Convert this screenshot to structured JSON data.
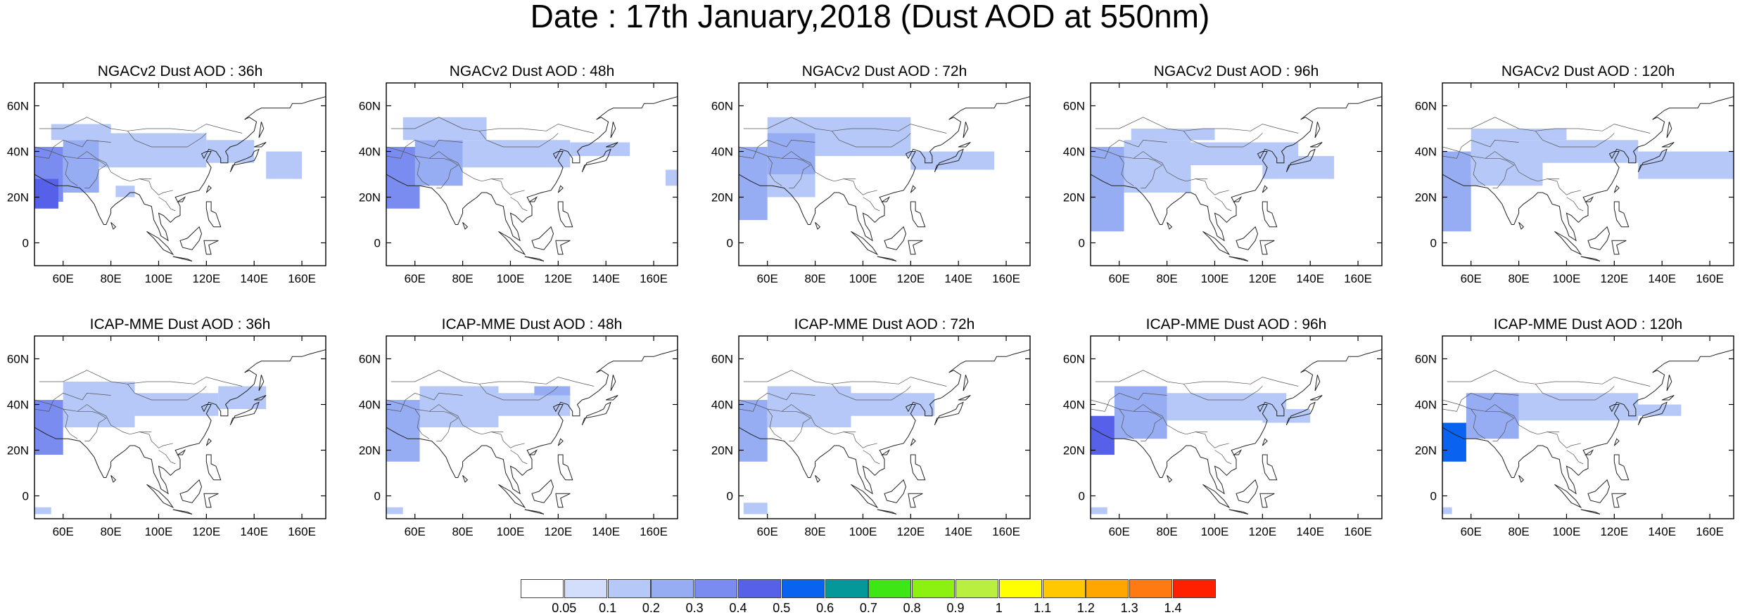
{
  "title": "Date : 17th January,2018 (Dust AOD at 550nm)",
  "axes": {
    "lon_ticks": [
      "60E",
      "80E",
      "100E",
      "120E",
      "140E",
      "160E"
    ],
    "lat_ticks": [
      "60N",
      "40N",
      "20N",
      "0"
    ],
    "lon_values": [
      60,
      80,
      100,
      120,
      140,
      160
    ],
    "lat_values": [
      60,
      40,
      20,
      0
    ],
    "lon_range": [
      48,
      170
    ],
    "lat_range": [
      -10,
      70
    ]
  },
  "panels": [
    {
      "title": "NGACv2 Dust AOD : 36h",
      "model": "NGACv2",
      "lead": "36h"
    },
    {
      "title": "NGACv2 Dust AOD : 48h",
      "model": "NGACv2",
      "lead": "48h"
    },
    {
      "title": "NGACv2 Dust AOD : 72h",
      "model": "NGACv2",
      "lead": "72h"
    },
    {
      "title": "NGACv2 Dust AOD : 96h",
      "model": "NGACv2",
      "lead": "96h"
    },
    {
      "title": "NGACv2 Dust AOD : 120h",
      "model": "NGACv2",
      "lead": "120h"
    },
    {
      "title": "ICAP-MME Dust AOD : 36h",
      "model": "ICAP-MME",
      "lead": "36h"
    },
    {
      "title": "ICAP-MME Dust AOD : 48h",
      "model": "ICAP-MME",
      "lead": "48h"
    },
    {
      "title": "ICAP-MME Dust AOD : 72h",
      "model": "ICAP-MME",
      "lead": "72h"
    },
    {
      "title": "ICAP-MME Dust AOD : 96h",
      "model": "ICAP-MME",
      "lead": "96h"
    },
    {
      "title": "ICAP-MME Dust AOD : 120h",
      "model": "ICAP-MME",
      "lead": "120h"
    }
  ],
  "colorbar": {
    "labels": [
      "0.05",
      "0.1",
      "0.2",
      "0.3",
      "0.4",
      "0.5",
      "0.6",
      "0.7",
      "0.8",
      "0.9",
      "1",
      "1.1",
      "1.2",
      "1.3",
      "1.4"
    ],
    "colors": [
      "#ffffff",
      "#d3defc",
      "#b5c8f7",
      "#96acf3",
      "#7b8cf0",
      "#5660e8",
      "#0a62f0",
      "#05989a",
      "#3fe616",
      "#8cf010",
      "#b9f040",
      "#ffff00",
      "#ffc800",
      "#ffa600",
      "#ff7a10",
      "#ff2000"
    ]
  },
  "dust_fields": {
    "NGACv2 Dust AOD : 36h": [
      [
        48,
        60,
        18,
        42,
        0.35
      ],
      [
        60,
        75,
        22,
        45,
        0.2
      ],
      [
        75,
        120,
        33,
        48,
        0.15
      ],
      [
        55,
        80,
        45,
        52,
        0.15
      ],
      [
        120,
        140,
        35,
        45,
        0.12
      ],
      [
        145,
        160,
        28,
        40,
        0.12
      ],
      [
        82,
        90,
        20,
        25,
        0.12
      ],
      [
        48,
        58,
        15,
        28,
        0.45
      ]
    ],
    "NGACv2 Dust AOD : 48h": [
      [
        48,
        62,
        15,
        42,
        0.3
      ],
      [
        60,
        80,
        25,
        45,
        0.2
      ],
      [
        80,
        125,
        33,
        45,
        0.13
      ],
      [
        55,
        90,
        45,
        55,
        0.12
      ],
      [
        125,
        150,
        38,
        44,
        0.1
      ],
      [
        165,
        170,
        25,
        32,
        0.1
      ]
    ],
    "NGACv2 Dust AOD : 72h": [
      [
        48,
        60,
        10,
        42,
        0.25
      ],
      [
        60,
        80,
        30,
        48,
        0.2
      ],
      [
        80,
        120,
        38,
        48,
        0.15
      ],
      [
        60,
        120,
        48,
        55,
        0.12
      ],
      [
        120,
        155,
        32,
        40,
        0.12
      ],
      [
        60,
        80,
        20,
        30,
        0.12
      ]
    ],
    "NGACv2 Dust AOD : 96h": [
      [
        48,
        62,
        5,
        42,
        0.2
      ],
      [
        62,
        90,
        22,
        45,
        0.15
      ],
      [
        90,
        135,
        34,
        44,
        0.12
      ],
      [
        65,
        100,
        45,
        50,
        0.12
      ],
      [
        120,
        150,
        28,
        38,
        0.12
      ]
    ],
    "NGACv2 Dust AOD : 120h": [
      [
        48,
        60,
        5,
        40,
        0.2
      ],
      [
        60,
        90,
        25,
        45,
        0.15
      ],
      [
        90,
        130,
        35,
        45,
        0.12
      ],
      [
        130,
        170,
        28,
        40,
        0.12
      ],
      [
        60,
        100,
        45,
        50,
        0.12
      ]
    ],
    "ICAP-MME Dust AOD : 36h": [
      [
        48,
        60,
        18,
        42,
        0.3
      ],
      [
        60,
        90,
        30,
        50,
        0.15
      ],
      [
        90,
        125,
        35,
        45,
        0.15
      ],
      [
        125,
        145,
        38,
        48,
        0.12
      ],
      [
        48,
        55,
        -8,
        -5,
        0.1
      ]
    ],
    "ICAP-MME Dust AOD : 48h": [
      [
        48,
        62,
        15,
        42,
        0.25
      ],
      [
        62,
        95,
        30,
        48,
        0.15
      ],
      [
        95,
        125,
        35,
        45,
        0.13
      ],
      [
        110,
        125,
        44,
        48,
        0.2
      ],
      [
        48,
        55,
        -8,
        -5,
        0.1
      ]
    ],
    "ICAP-MME Dust AOD : 72h": [
      [
        48,
        60,
        15,
        42,
        0.25
      ],
      [
        60,
        95,
        30,
        48,
        0.15
      ],
      [
        95,
        130,
        35,
        45,
        0.12
      ],
      [
        50,
        60,
        -8,
        -3,
        0.1
      ]
    ],
    "ICAP-MME Dust AOD : 96h": [
      [
        48,
        58,
        18,
        35,
        0.45
      ],
      [
        58,
        80,
        25,
        48,
        0.2
      ],
      [
        80,
        130,
        33,
        45,
        0.13
      ],
      [
        120,
        140,
        32,
        38,
        0.15
      ],
      [
        48,
        55,
        -8,
        -5,
        0.1
      ]
    ],
    "ICAP-MME Dust AOD : 120h": [
      [
        48,
        58,
        15,
        32,
        0.5
      ],
      [
        58,
        80,
        25,
        45,
        0.2
      ],
      [
        80,
        130,
        33,
        45,
        0.13
      ],
      [
        120,
        148,
        35,
        40,
        0.15
      ],
      [
        48,
        52,
        -8,
        -5,
        0.1
      ]
    ]
  },
  "coastline": [
    [
      [
        48,
        30
      ],
      [
        53,
        27
      ],
      [
        57,
        25
      ],
      [
        62,
        25
      ],
      [
        67,
        24
      ],
      [
        70,
        21
      ],
      [
        73,
        17
      ],
      [
        75,
        12
      ],
      [
        77,
        8
      ],
      [
        78,
        8
      ],
      [
        80,
        13
      ],
      [
        80,
        15
      ],
      [
        82,
        17
      ],
      [
        86,
        20
      ],
      [
        88,
        22
      ],
      [
        90,
        22
      ],
      [
        92,
        21
      ],
      [
        94,
        17
      ],
      [
        97,
        16
      ],
      [
        98,
        10
      ],
      [
        100,
        6
      ],
      [
        101,
        3
      ],
      [
        104,
        1
      ],
      [
        103,
        5
      ],
      [
        101,
        8
      ],
      [
        100,
        13
      ],
      [
        102,
        12
      ],
      [
        105,
        9
      ],
      [
        107,
        11
      ],
      [
        109,
        12
      ],
      [
        109,
        16
      ],
      [
        107,
        20
      ],
      [
        110,
        21
      ],
      [
        113,
        22
      ],
      [
        117,
        23
      ],
      [
        119,
        26
      ],
      [
        121,
        30
      ],
      [
        122,
        33
      ],
      [
        120,
        36
      ],
      [
        121,
        38
      ],
      [
        122,
        40
      ],
      [
        120,
        40
      ],
      [
        118,
        39
      ],
      [
        119,
        37
      ],
      [
        121,
        41
      ],
      [
        124,
        40
      ],
      [
        126,
        37
      ],
      [
        126,
        35
      ],
      [
        129,
        35
      ],
      [
        129,
        38
      ],
      [
        128,
        40
      ],
      [
        130,
        42
      ],
      [
        133,
        43
      ],
      [
        137,
        46
      ],
      [
        140,
        49
      ],
      [
        141,
        53
      ],
      [
        138,
        55
      ],
      [
        136,
        54
      ],
      [
        141,
        58
      ],
      [
        143,
        59
      ],
      [
        150,
        59
      ],
      [
        155,
        59
      ],
      [
        156,
        61
      ],
      [
        160,
        61
      ],
      [
        163,
        62
      ],
      [
        170,
        64
      ]
    ]
  ],
  "islands": [
    [
      [
        80,
        9
      ],
      [
        82,
        7
      ],
      [
        81,
        6
      ],
      [
        80,
        9
      ]
    ],
    [
      [
        95,
        5
      ],
      [
        100,
        2
      ],
      [
        104,
        -2
      ],
      [
        106,
        -5
      ],
      [
        102,
        -3
      ],
      [
        98,
        2
      ],
      [
        95,
        5
      ]
    ],
    [
      [
        106,
        -6
      ],
      [
        114,
        -8
      ],
      [
        112,
        -7
      ],
      [
        106,
        -6
      ]
    ],
    [
      [
        109,
        1
      ],
      [
        112,
        2
      ],
      [
        117,
        7
      ],
      [
        118,
        4
      ],
      [
        117,
        1
      ],
      [
        114,
        -3
      ],
      [
        110,
        -2
      ],
      [
        109,
        1
      ]
    ],
    [
      [
        119,
        1
      ],
      [
        125,
        1
      ],
      [
        121,
        -1
      ],
      [
        122,
        -5
      ],
      [
        120,
        -5
      ],
      [
        119,
        1
      ]
    ],
    [
      [
        120,
        18
      ],
      [
        122,
        18
      ],
      [
        122,
        14
      ],
      [
        124,
        13
      ],
      [
        125,
        10
      ],
      [
        126,
        7
      ],
      [
        123,
        7
      ],
      [
        121,
        10
      ],
      [
        120,
        15
      ],
      [
        120,
        18
      ]
    ],
    [
      [
        130,
        31
      ],
      [
        131,
        34
      ],
      [
        136,
        35
      ],
      [
        140,
        36
      ],
      [
        141,
        38
      ],
      [
        142,
        41
      ],
      [
        140,
        40
      ],
      [
        139,
        38
      ],
      [
        137,
        37
      ],
      [
        132,
        35
      ],
      [
        130,
        31
      ]
    ],
    [
      [
        140,
        42
      ],
      [
        145,
        44
      ],
      [
        143,
        42
      ],
      [
        140,
        42
      ]
    ],
    [
      [
        120,
        22
      ],
      [
        121,
        25
      ],
      [
        122,
        24
      ],
      [
        120,
        22
      ]
    ],
    [
      [
        108,
        18
      ],
      [
        111,
        20
      ],
      [
        110,
        18
      ],
      [
        108,
        18
      ]
    ],
    [
      [
        142,
        46
      ],
      [
        143,
        53
      ],
      [
        144,
        50
      ],
      [
        142,
        46
      ]
    ]
  ],
  "borders": [
    [
      [
        48,
        42
      ],
      [
        55,
        40
      ],
      [
        60,
        38
      ],
      [
        66,
        37
      ],
      [
        70,
        40
      ],
      [
        74,
        37
      ],
      [
        78,
        35
      ],
      [
        80,
        31
      ],
      [
        85,
        28
      ],
      [
        88,
        27
      ],
      [
        92,
        28
      ],
      [
        97,
        28
      ]
    ],
    [
      [
        50,
        50
      ],
      [
        60,
        50
      ],
      [
        70,
        55
      ],
      [
        80,
        50
      ],
      [
        87,
        49
      ],
      [
        95,
        50
      ],
      [
        105,
        50
      ],
      [
        115,
        49
      ],
      [
        120,
        52
      ],
      [
        127,
        50
      ],
      [
        135,
        48
      ]
    ],
    [
      [
        87,
        49
      ],
      [
        90,
        45
      ],
      [
        97,
        42
      ],
      [
        105,
        42
      ],
      [
        112,
        42
      ],
      [
        118,
        46
      ],
      [
        120,
        48
      ]
    ],
    [
      [
        60,
        38
      ],
      [
        62,
        35
      ],
      [
        61,
        30
      ],
      [
        63,
        27
      ],
      [
        66,
        25
      ]
    ],
    [
      [
        66,
        37
      ],
      [
        72,
        37
      ],
      [
        75,
        36
      ],
      [
        78,
        34
      ],
      [
        75,
        32
      ],
      [
        74,
        28
      ],
      [
        71,
        24
      ],
      [
        69,
        24
      ]
    ],
    [
      [
        92,
        28
      ],
      [
        96,
        27
      ],
      [
        97,
        24
      ],
      [
        100,
        21
      ],
      [
        102,
        22
      ],
      [
        106,
        23
      ]
    ],
    [
      [
        100,
        20
      ],
      [
        103,
        18
      ],
      [
        105,
        15
      ],
      [
        107,
        14
      ]
    ],
    [
      [
        48,
        38
      ],
      [
        54,
        37
      ],
      [
        56,
        42
      ],
      [
        60,
        45
      ],
      [
        68,
        42
      ],
      [
        70,
        45
      ],
      [
        80,
        44
      ]
    ]
  ]
}
